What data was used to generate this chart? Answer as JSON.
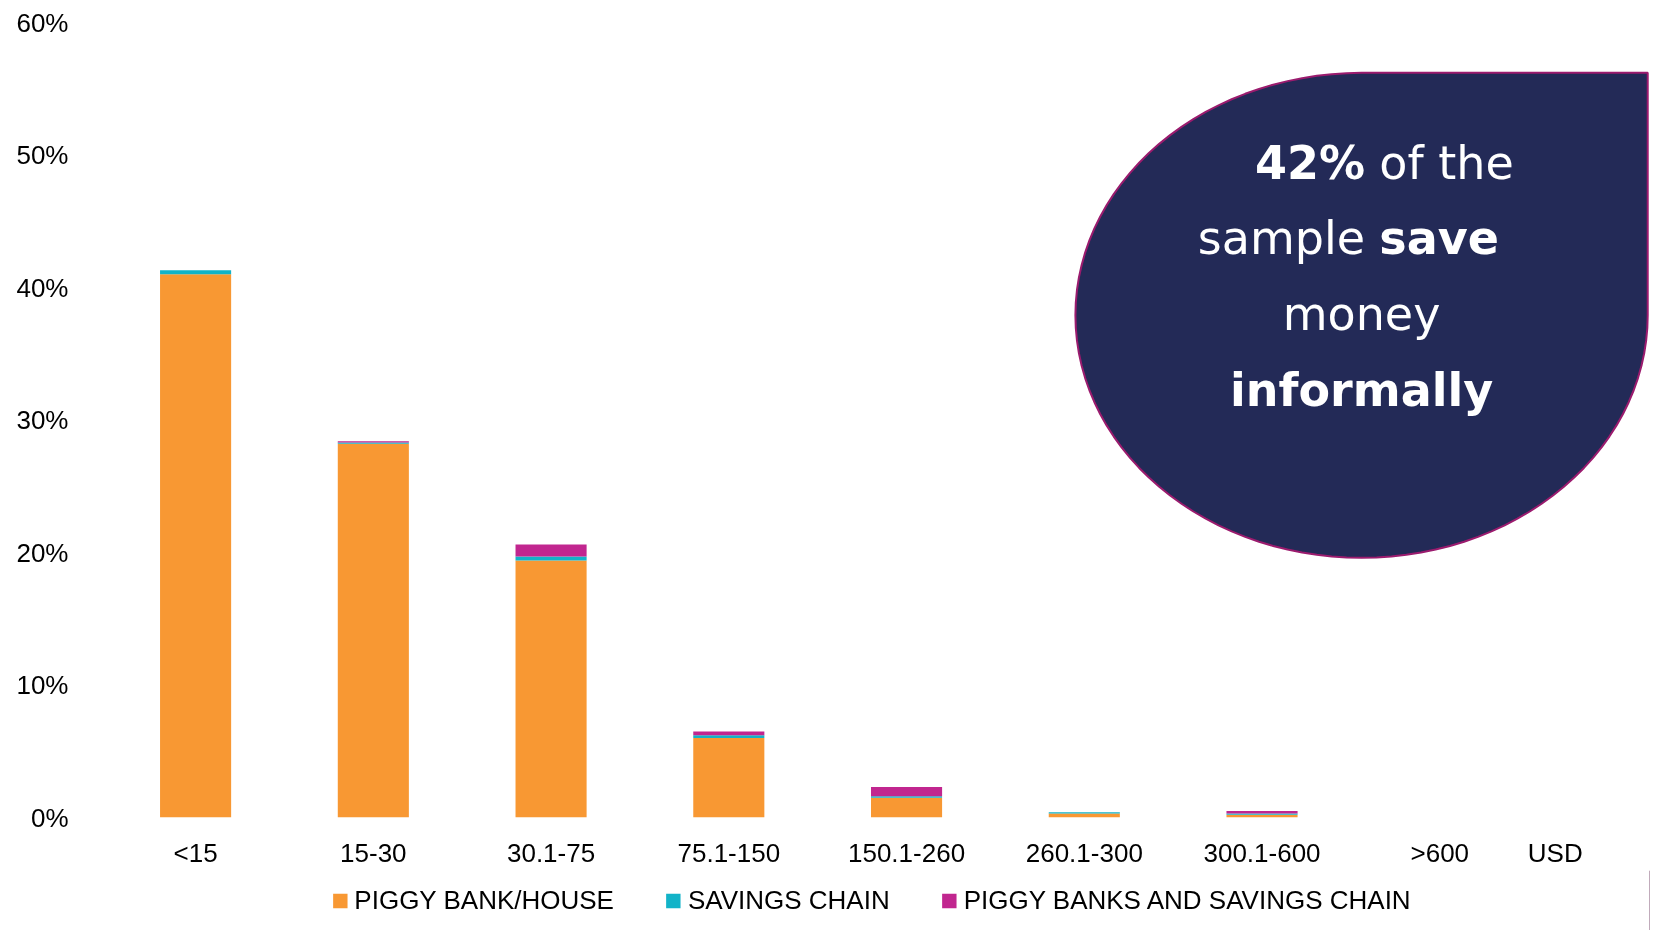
{
  "chart_data": {
    "type": "bar",
    "stacked": true,
    "xlabel": "USD",
    "categories": [
      "<15",
      "15-30",
      "30.1-75",
      "75.1-150",
      "150.1-260",
      "260.1-300",
      "300.1-600",
      ">600"
    ],
    "series": [
      {
        "name": "PIGGY BANK/HOUSE",
        "color": "#f89833",
        "values": [
          41.0,
          28.2,
          19.4,
          6.0,
          1.5,
          0.3,
          0.2,
          0
        ]
      },
      {
        "name": "SAVINGS CHAIN",
        "color": "#12b3c8",
        "values": [
          0.3,
          0.1,
          0.3,
          0.2,
          0.1,
          0.1,
          0.1,
          0
        ]
      },
      {
        "name": "PIGGY BANKS AND SAVINGS CHAIN",
        "color": "#c1268f",
        "values": [
          0,
          0.1,
          0.9,
          0.3,
          0.7,
          0,
          0.2,
          0
        ]
      }
    ],
    "ylim": [
      0,
      60
    ],
    "yticks": [
      {
        "value": 0,
        "label": "0%"
      },
      {
        "value": 10,
        "label": "10%"
      },
      {
        "value": 20,
        "label": "20%"
      },
      {
        "value": 30,
        "label": "30%"
      },
      {
        "value": 40,
        "label": "40%"
      },
      {
        "value": 50,
        "label": "50%"
      },
      {
        "value": 60,
        "label": "60%"
      }
    ],
    "grid": false,
    "legend": "bottom",
    "annotations": [
      "42% of the sample save money informally"
    ]
  }
}
